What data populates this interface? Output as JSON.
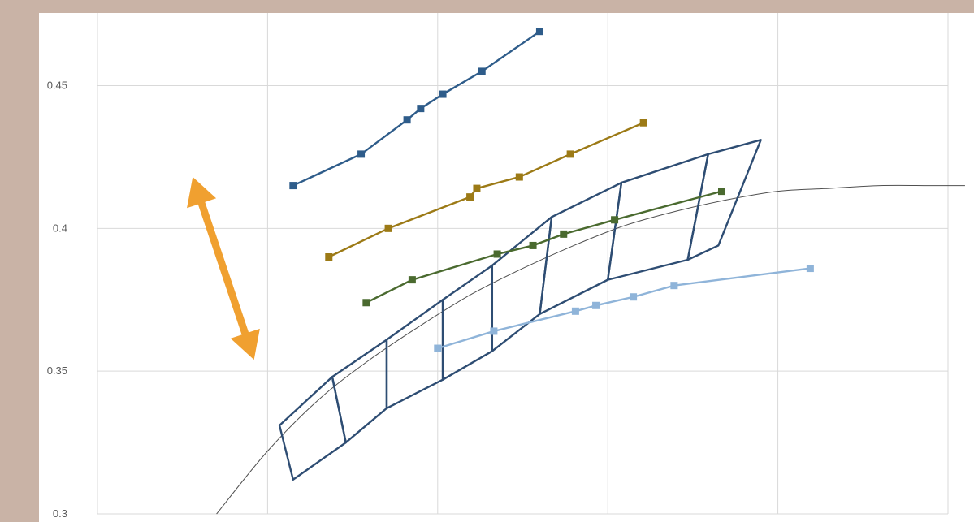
{
  "colors": {
    "frame": "#c9b3a6",
    "plot_bg": "#ffffff",
    "grid": "#d9d9d9",
    "envelope": "#2e4d73",
    "trend_curve": "#505050",
    "arrow": "#f0a030"
  },
  "chart_data": {
    "type": "scatter",
    "title": "",
    "xlabel": "",
    "ylabel": "",
    "xlim": [
      0,
      50
    ],
    "ylim": [
      0.3,
      0.48
    ],
    "grid": true,
    "legend": "none",
    "y_ticks": [
      {
        "value": 0.3,
        "label": "0.3"
      },
      {
        "value": 0.35,
        "label": "0.35"
      },
      {
        "value": 0.4,
        "label": "0.4"
      },
      {
        "value": 0.45,
        "label": "0.45"
      }
    ],
    "x_gridlines": [
      0,
      10,
      20,
      30,
      40,
      50
    ],
    "series": [
      {
        "color": "#2e5c8a",
        "x": [
          11.5,
          15.5,
          18.2,
          19.0,
          20.3,
          22.6,
          26.0
        ],
        "y": [
          0.415,
          0.426,
          0.438,
          0.442,
          0.447,
          0.455,
          0.469
        ]
      },
      {
        "color": "#9c7a16",
        "x": [
          13.6,
          17.1,
          21.9,
          22.3,
          24.8,
          27.8,
          32.1
        ],
        "y": [
          0.39,
          0.4,
          0.411,
          0.414,
          0.418,
          0.426,
          0.437
        ]
      },
      {
        "color": "#4a6a2f",
        "x": [
          15.8,
          18.5,
          23.5,
          25.6,
          27.4,
          30.4,
          36.7
        ],
        "y": [
          0.374,
          0.382,
          0.391,
          0.394,
          0.398,
          0.403,
          0.413
        ]
      },
      {
        "color": "#8fb4d9",
        "x": [
          20.0,
          23.3,
          28.1,
          29.3,
          31.5,
          33.9,
          41.9
        ],
        "y": [
          0.358,
          0.364,
          0.371,
          0.373,
          0.376,
          0.38,
          0.386
        ]
      }
    ],
    "envelope_cells": [
      [
        [
          10.7,
          0.331
        ],
        [
          13.8,
          0.348
        ],
        [
          14.6,
          0.325
        ],
        [
          11.5,
          0.312
        ]
      ],
      [
        [
          13.8,
          0.348
        ],
        [
          17.0,
          0.361
        ],
        [
          17.0,
          0.337
        ],
        [
          14.6,
          0.325
        ]
      ],
      [
        [
          17.0,
          0.361
        ],
        [
          20.3,
          0.375
        ],
        [
          20.3,
          0.347
        ],
        [
          17.0,
          0.337
        ]
      ],
      [
        [
          20.3,
          0.375
        ],
        [
          23.2,
          0.387
        ],
        [
          23.2,
          0.357
        ],
        [
          20.3,
          0.347
        ]
      ],
      [
        [
          23.2,
          0.387
        ],
        [
          26.7,
          0.404
        ],
        [
          26.0,
          0.37
        ],
        [
          23.2,
          0.357
        ]
      ],
      [
        [
          26.7,
          0.404
        ],
        [
          30.8,
          0.416
        ],
        [
          30.0,
          0.382
        ],
        [
          26.0,
          0.37
        ]
      ],
      [
        [
          30.8,
          0.416
        ],
        [
          35.9,
          0.426
        ],
        [
          34.7,
          0.389
        ],
        [
          30.0,
          0.382
        ]
      ],
      [
        [
          35.9,
          0.426
        ],
        [
          39.0,
          0.431
        ],
        [
          36.5,
          0.394
        ],
        [
          34.7,
          0.389
        ]
      ]
    ],
    "trend_curve": {
      "x": [
        7,
        10,
        13,
        16,
        19,
        22,
        25,
        28,
        31,
        34,
        37,
        40,
        43,
        46,
        49,
        51
      ],
      "y": [
        0.3,
        0.322,
        0.34,
        0.354,
        0.366,
        0.377,
        0.386,
        0.394,
        0.401,
        0.406,
        0.41,
        0.413,
        0.414,
        0.415,
        0.415,
        0.415
      ]
    },
    "annotation_arrow": {
      "start": [
        5.6,
        0.418
      ],
      "end": [
        9.2,
        0.354
      ]
    }
  }
}
